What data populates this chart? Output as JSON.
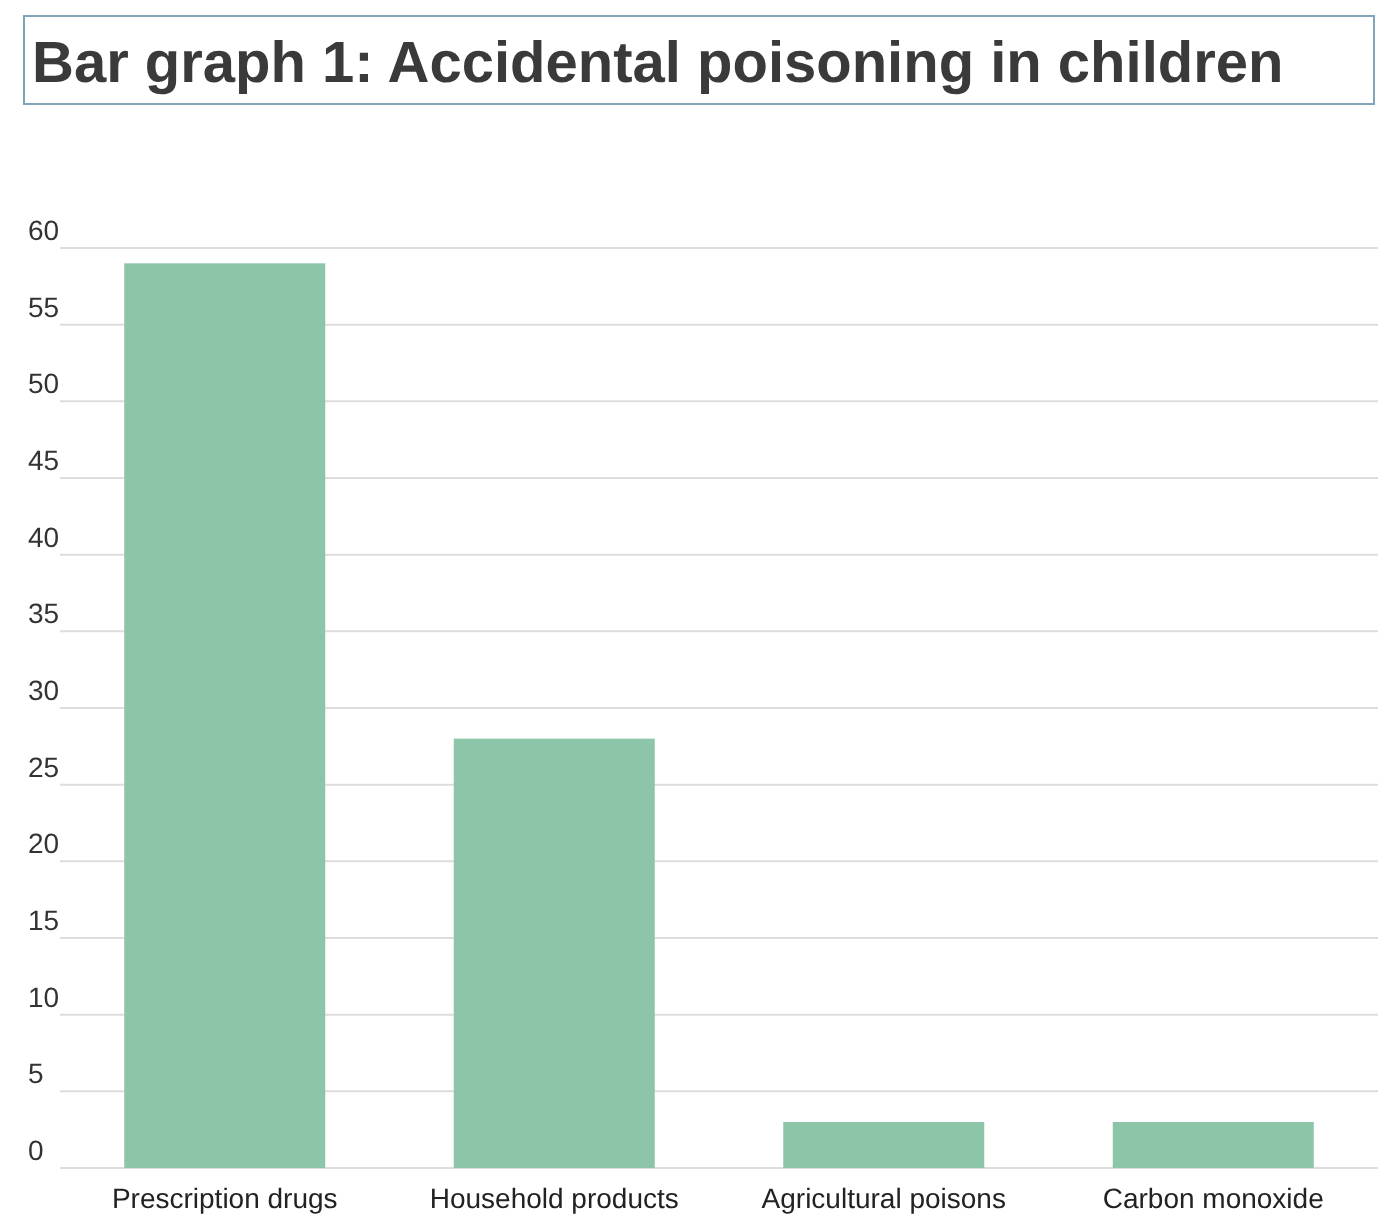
{
  "chart_data": {
    "type": "bar",
    "title": "Bar graph 1: Accidental poisoning in children",
    "categories": [
      "Prescription drugs",
      "Household products",
      "Agricultural poisons",
      "Carbon monoxide"
    ],
    "values": [
      59,
      28,
      3,
      3
    ],
    "color": "#8cc5a7",
    "ylim": [
      0,
      60
    ],
    "yticks": [
      0,
      5,
      10,
      15,
      20,
      25,
      30,
      35,
      40,
      45,
      50,
      55,
      60
    ],
    "grid": "y"
  }
}
